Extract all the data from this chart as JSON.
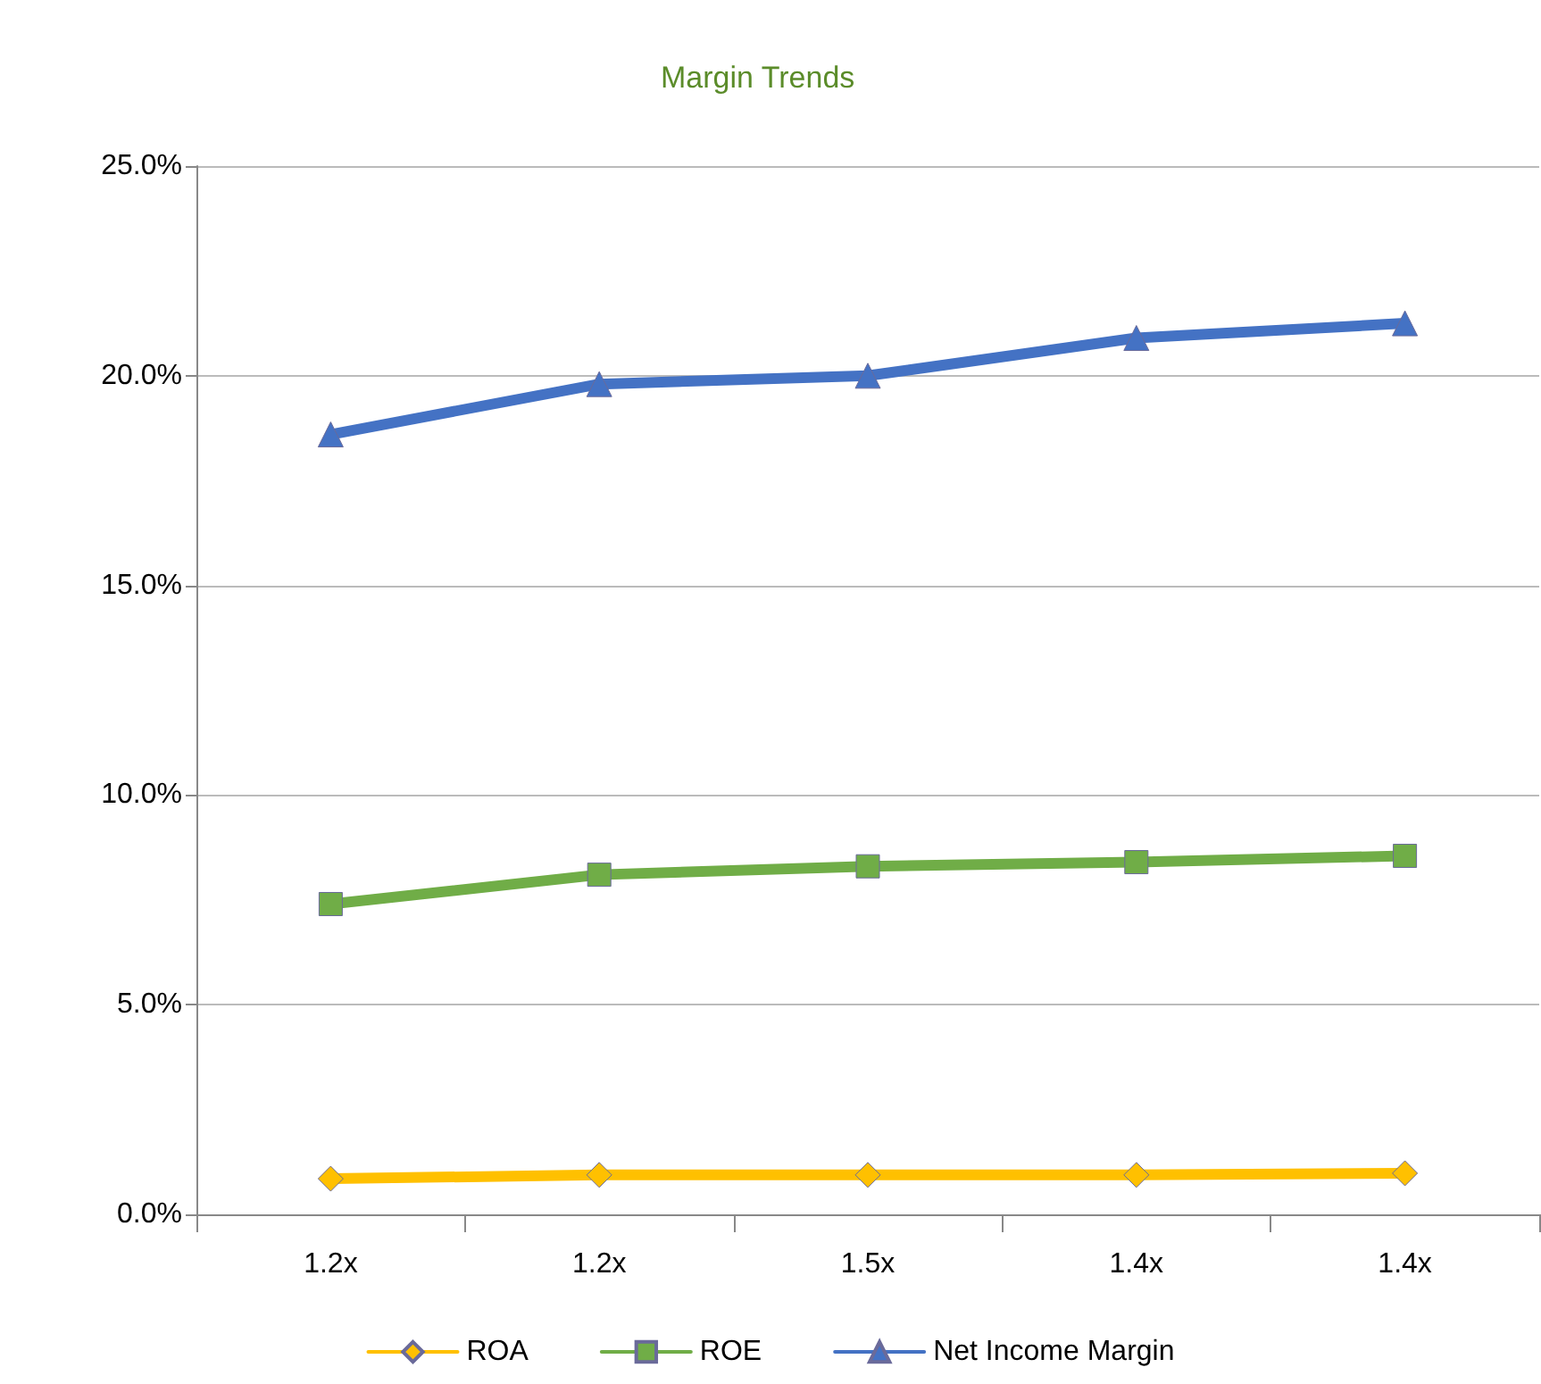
{
  "chart_data": {
    "type": "line",
    "title": "Margin Trends",
    "categories": [
      "1.2x",
      "1.2x",
      "1.5x",
      "1.4x",
      "1.4x"
    ],
    "series": [
      {
        "name": "ROA",
        "color": "#ffc000",
        "marker": "diamond",
        "values": [
          0.85,
          0.94,
          0.94,
          0.94,
          0.98
        ]
      },
      {
        "name": "ROE",
        "color": "#70ad47",
        "marker": "square",
        "values": [
          7.4,
          8.1,
          8.3,
          8.4,
          8.55
        ]
      },
      {
        "name": "Net Income Margin",
        "color": "#4472c4",
        "marker": "triangle",
        "values": [
          18.6,
          19.8,
          20.0,
          20.9,
          21.25
        ]
      }
    ],
    "ylim": [
      0,
      25
    ],
    "yticks": [
      {
        "value": 0,
        "label": "0.0%"
      },
      {
        "value": 5,
        "label": "5.0%"
      },
      {
        "value": 10,
        "label": "10.0%"
      },
      {
        "value": 15,
        "label": "15.0%"
      },
      {
        "value": 20,
        "label": "20.0%"
      },
      {
        "value": 25,
        "label": "25.0%"
      }
    ],
    "grid": "y",
    "legend": "bottom",
    "line_style": "solid"
  }
}
